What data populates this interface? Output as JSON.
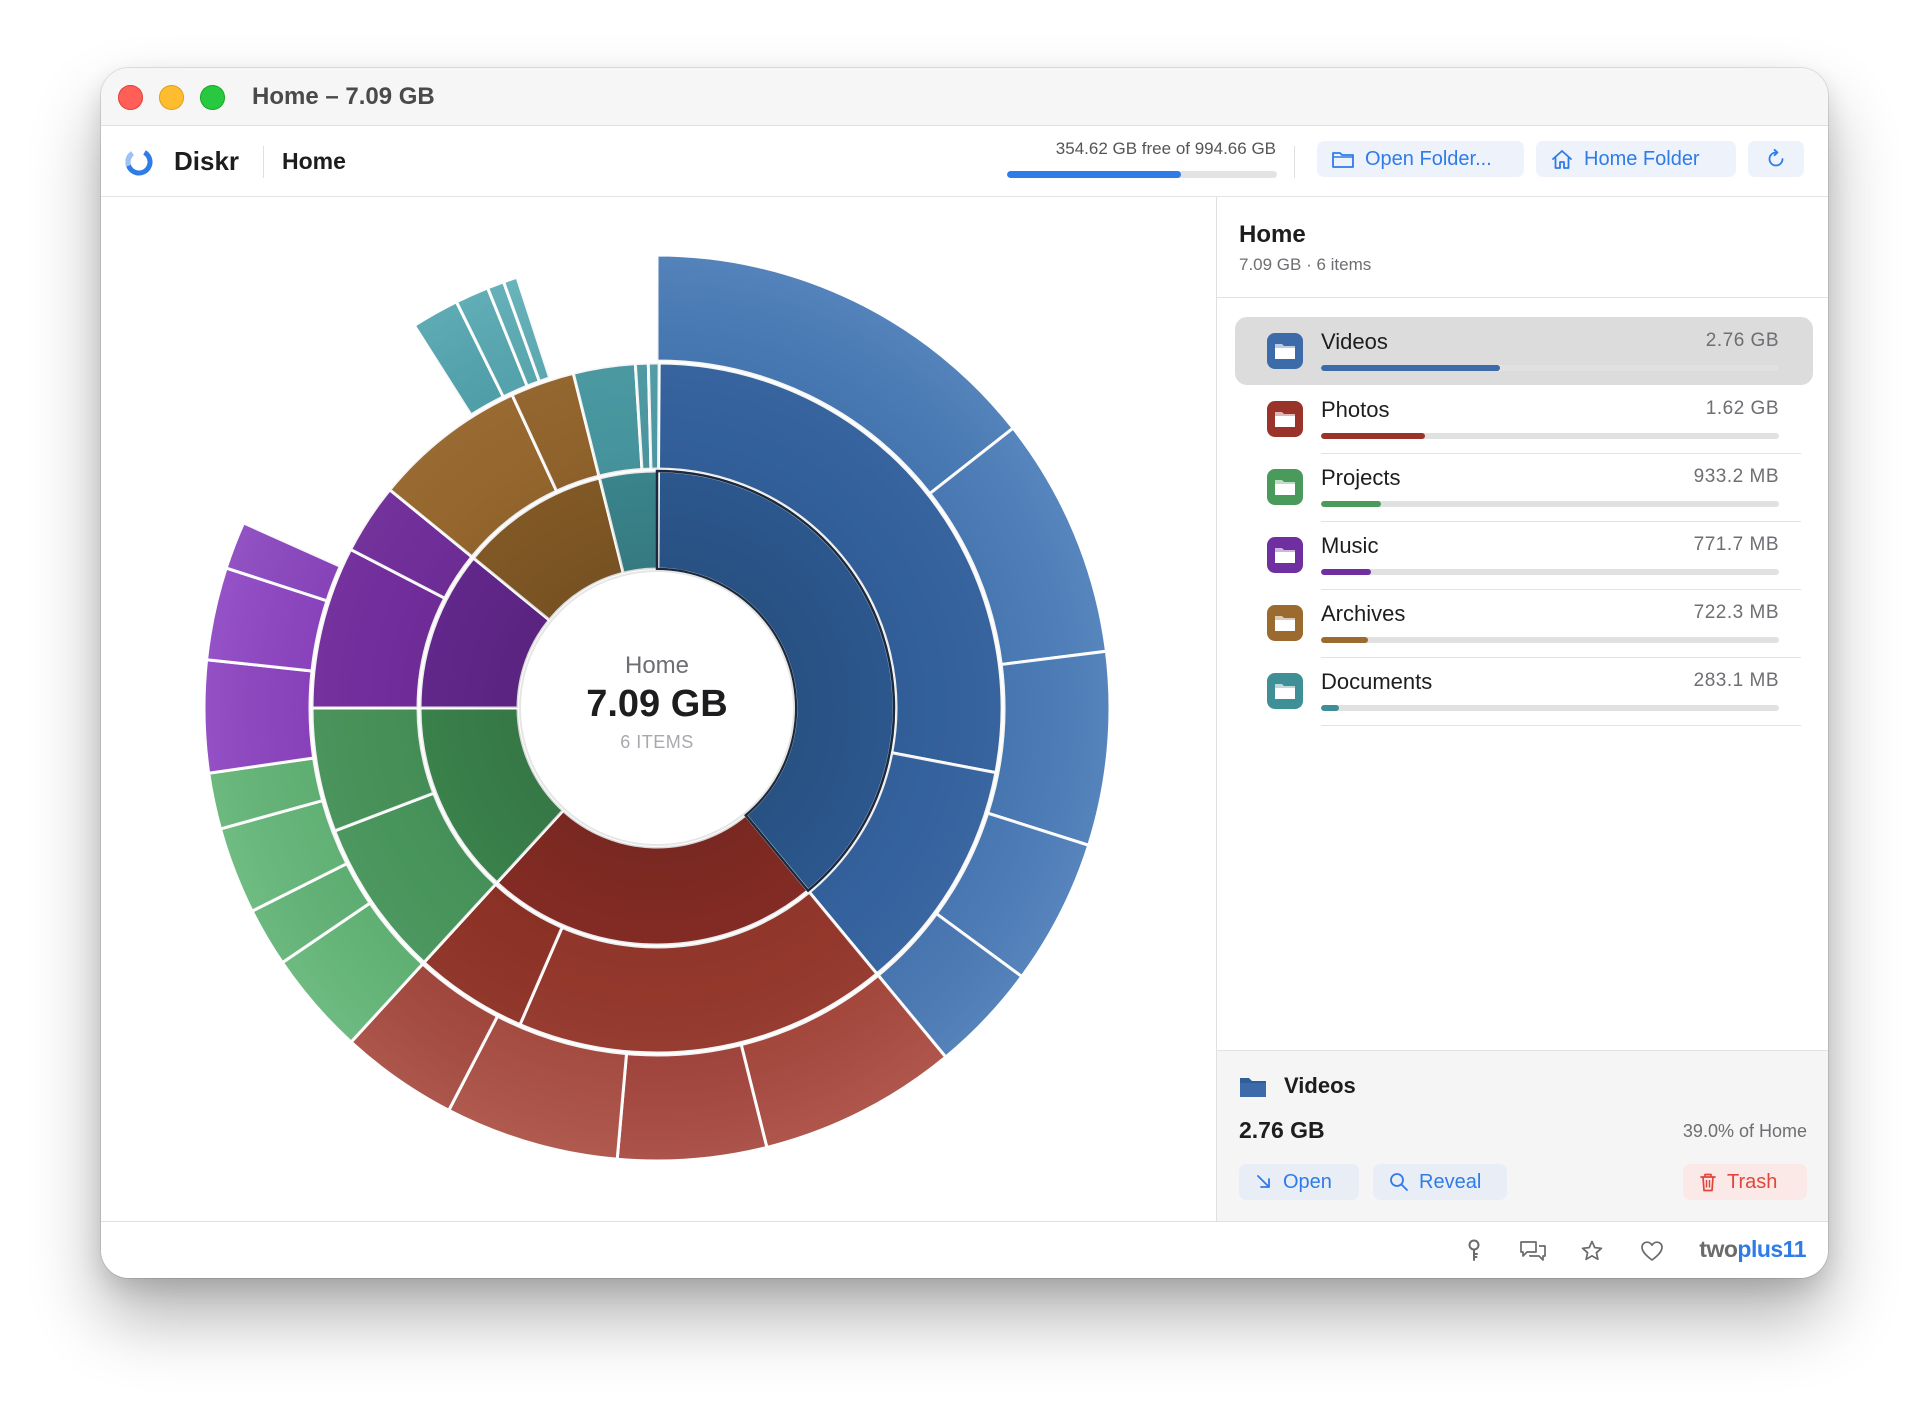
{
  "window": {
    "title": "Home – 7.09 GB"
  },
  "toolbar": {
    "app_name": "Diskr",
    "breadcrumb": "Home",
    "disk_text": "354.62 GB free of 994.66 GB",
    "disk_used_fraction": 0.6435,
    "open_folder_label": "Open Folder...",
    "home_folder_label": "Home Folder"
  },
  "center": {
    "title": "Home",
    "size": "7.09 GB",
    "items": "6 ITEMS"
  },
  "sidebar": {
    "title": "Home",
    "subtitle": "7.09 GB · 6 items",
    "items": [
      {
        "name": "Videos",
        "size": "2.76 GB",
        "fraction": 0.39,
        "color": "#3d6aa8",
        "selected": true
      },
      {
        "name": "Photos",
        "size": "1.62 GB",
        "fraction": 0.228,
        "color": "#9a3329",
        "selected": false
      },
      {
        "name": "Projects",
        "size": "933.2 MB",
        "fraction": 0.132,
        "color": "#4a9a5c",
        "selected": false
      },
      {
        "name": "Music",
        "size": "771.7 MB",
        "fraction": 0.109,
        "color": "#6f2fa0",
        "selected": false
      },
      {
        "name": "Archives",
        "size": "722.3 MB",
        "fraction": 0.102,
        "color": "#9a6a2e",
        "selected": false
      },
      {
        "name": "Documents",
        "size": "283.1 MB",
        "fraction": 0.04,
        "color": "#3f8f97",
        "selected": false
      }
    ]
  },
  "detail": {
    "name": "Videos",
    "size": "2.76 GB",
    "percent": "39.0% of Home",
    "open_label": "Open",
    "reveal_label": "Reveal",
    "trash_label": "Trash"
  },
  "footer": {
    "icons": [
      "key-icon",
      "chat-bubbles-icon",
      "star-icon",
      "heart-icon"
    ],
    "brand_part1": "two",
    "brand_part2": "plus11"
  },
  "colors": {
    "accent": "#2f7be8",
    "danger": "#e0463b"
  },
  "chart_data": {
    "type": "sunburst",
    "rings": [
      {
        "level": 1,
        "segments": [
          {
            "parent": "Home",
            "name": "Videos",
            "fraction": 0.39,
            "color": "#2f5f9a"
          },
          {
            "parent": "Home",
            "name": "Photos",
            "fraction": 0.228,
            "color": "#8e2f27"
          },
          {
            "parent": "Home",
            "name": "Projects",
            "fraction": 0.132,
            "color": "#3f8c52"
          },
          {
            "parent": "Home",
            "name": "Music",
            "fraction": 0.109,
            "color": "#6a2a96"
          },
          {
            "parent": "Home",
            "name": "Archives",
            "fraction": 0.102,
            "color": "#8c6028"
          },
          {
            "parent": "Home",
            "name": "Documents",
            "fraction": 0.04,
            "color": "#3f8f97"
          }
        ]
      },
      {
        "level": 2,
        "segments": [
          {
            "parent": "Videos",
            "fraction": 0.28,
            "color": "#3565a3"
          },
          {
            "parent": "Videos",
            "fraction": 0.11,
            "color": "#3767a6"
          },
          {
            "parent": "Photos",
            "fraction": 0.175,
            "color": "#9b3a2e"
          },
          {
            "parent": "Photos",
            "fraction": 0.053,
            "color": "#953529"
          },
          {
            "parent": "Projects",
            "fraction": 0.074,
            "color": "#4b9c60"
          },
          {
            "parent": "Projects",
            "fraction": 0.058,
            "color": "#4a985d"
          },
          {
            "parent": "Music",
            "fraction": 0.076,
            "color": "#772fa3"
          },
          {
            "parent": "Music",
            "fraction": 0.033,
            "color": "#7530a0"
          },
          {
            "parent": "Archives",
            "fraction": 0.072,
            "color": "#9d6c30"
          },
          {
            "parent": "Archives",
            "fraction": 0.03,
            "color": "#98682e"
          },
          {
            "parent": "Documents",
            "fraction": 0.029,
            "color": "#4a9da6"
          },
          {
            "parent": "Documents",
            "fraction": 0.006,
            "color": "#4f9fa8"
          },
          {
            "parent": "Documents",
            "fraction": 0.005,
            "color": "#52a2ab"
          }
        ]
      },
      {
        "level": 3,
        "segments": [
          {
            "parent": "Videos",
            "fraction": 0.144,
            "color": "#4377b5"
          },
          {
            "parent": "Videos",
            "fraction": 0.086,
            "color": "#4679b8"
          },
          {
            "parent": "Videos",
            "fraction": 0.069,
            "color": "#4477b6"
          },
          {
            "parent": "Videos",
            "fraction": 0.052,
            "color": "#4678b7"
          },
          {
            "parent": "Videos",
            "fraction": 0.039,
            "color": "#4576b4"
          },
          {
            "parent": "Photos",
            "fraction": 0.071,
            "color": "#a8453a"
          },
          {
            "parent": "Photos",
            "fraction": 0.053,
            "color": "#a4423a"
          },
          {
            "parent": "Photos",
            "fraction": 0.062,
            "color": "#a94a3e"
          },
          {
            "parent": "Photos",
            "fraction": 0.042,
            "color": "#a4453a"
          },
          {
            "parent": "gap",
            "fraction": 0.0,
            "color": "none"
          },
          {
            "parent": "Projects",
            "fraction": 0.037,
            "color": "#5fb574"
          },
          {
            "parent": "Projects",
            "fraction": 0.021,
            "color": "#5db272"
          },
          {
            "parent": "Projects",
            "fraction": 0.031,
            "color": "#61b676"
          },
          {
            "parent": "Projects",
            "fraction": 0.02,
            "color": "#5eb373"
          },
          {
            "parent": "Music",
            "fraction": 0.04,
            "color": "#8a3ec0"
          },
          {
            "parent": "Music",
            "fraction": 0.033,
            "color": "#8b40c2"
          },
          {
            "parent": "Music",
            "fraction": 0.017,
            "color": "#8841be"
          },
          {
            "parent": "gap",
            "fraction": 0.093,
            "color": "none"
          },
          {
            "parent": "Documents",
            "fraction": 0.017,
            "color": "#4ea3ad"
          },
          {
            "parent": "Documents",
            "fraction": 0.012,
            "color": "#52a6b0"
          },
          {
            "parent": "Documents",
            "fraction": 0.006,
            "color": "#57aab3"
          },
          {
            "parent": "Documents",
            "fraction": 0.005,
            "color": "#5badb6"
          }
        ]
      }
    ]
  }
}
